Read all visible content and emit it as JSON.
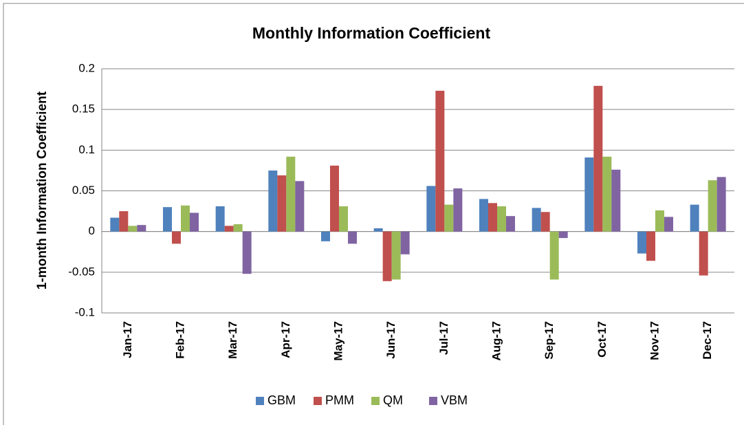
{
  "chart_data": {
    "type": "bar",
    "title": "Monthly Information Coefficient",
    "y_label": "1-month Information Coefficient",
    "categories": [
      "Jan-17",
      "Feb-17",
      "Mar-17",
      "Apr-17",
      "May-17",
      "Jun-17",
      "Jul-17",
      "Aug-17",
      "Sep-17",
      "Oct-17",
      "Nov-17",
      "Dec-17"
    ],
    "series": [
      {
        "name": "GBM",
        "color": "#4f81bd",
        "values": [
          0.017,
          0.03,
          0.031,
          0.075,
          -0.012,
          0.004,
          0.056,
          0.04,
          0.029,
          0.091,
          -0.027,
          0.033
        ]
      },
      {
        "name": "PMM",
        "color": "#c0504d",
        "values": [
          0.025,
          -0.015,
          0.007,
          0.069,
          0.081,
          -0.061,
          0.173,
          0.035,
          0.024,
          0.179,
          -0.036,
          -0.054
        ]
      },
      {
        "name": "QM",
        "color": "#9bbb59",
        "values": [
          0.007,
          0.032,
          0.009,
          0.092,
          0.031,
          -0.059,
          0.033,
          0.031,
          -0.059,
          0.092,
          0.026,
          0.063
        ]
      },
      {
        "name": "VBM",
        "color": "#8064a2",
        "values": [
          0.008,
          0.023,
          -0.052,
          0.062,
          -0.015,
          -0.028,
          0.053,
          0.019,
          -0.008,
          0.076,
          0.018,
          0.067
        ]
      }
    ],
    "ylim": [
      -0.1,
      0.2
    ],
    "yticks": [
      0.2,
      0.15,
      0.1,
      0.05,
      0,
      -0.05,
      -0.1
    ],
    "grid": true,
    "legend": "bottom"
  }
}
